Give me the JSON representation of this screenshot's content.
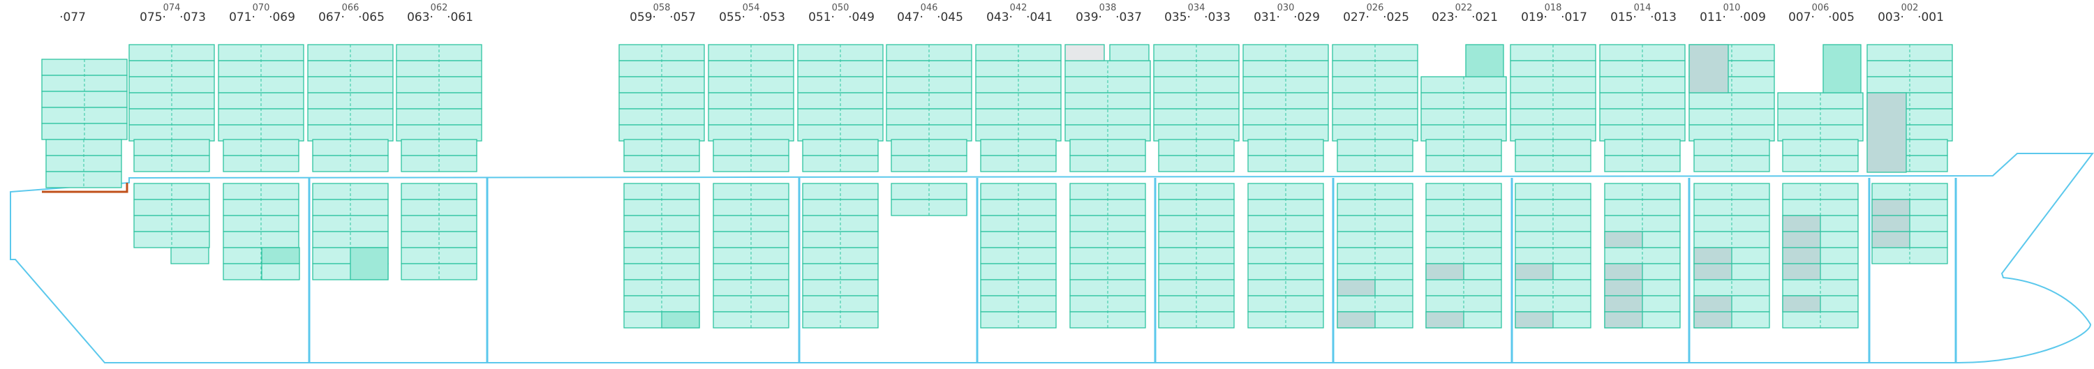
{
  "bays": [
    {
      "id": "077",
      "left": "",
      "right": "077",
      "top": ""
    },
    {
      "id": "074",
      "left": "075",
      "right": "073",
      "top": "074"
    },
    {
      "id": "070",
      "left": "071",
      "right": "069",
      "top": "070"
    },
    {
      "id": "066",
      "left": "067",
      "right": "065",
      "top": "066"
    },
    {
      "id": "062",
      "left": "063",
      "right": "061",
      "top": "062"
    },
    {
      "id": "058",
      "left": "059",
      "right": "057",
      "top": "058"
    },
    {
      "id": "054",
      "left": "055",
      "right": "053",
      "top": "054"
    },
    {
      "id": "050",
      "left": "051",
      "right": "049",
      "top": "050"
    },
    {
      "id": "046",
      "left": "047",
      "right": "045",
      "top": "046"
    },
    {
      "id": "042",
      "left": "043",
      "right": "041",
      "top": "042"
    },
    {
      "id": "038",
      "left": "039",
      "right": "037",
      "top": "038"
    },
    {
      "id": "034",
      "left": "035",
      "right": "033",
      "top": "034"
    },
    {
      "id": "030",
      "left": "031",
      "right": "029",
      "top": "030"
    },
    {
      "id": "026",
      "left": "027",
      "right": "025",
      "top": "026"
    },
    {
      "id": "022",
      "left": "023",
      "right": "021",
      "top": "022"
    },
    {
      "id": "018",
      "left": "019",
      "right": "017",
      "top": "018"
    },
    {
      "id": "014",
      "left": "015",
      "right": "013",
      "top": "014"
    },
    {
      "id": "010",
      "left": "011",
      "right": "009",
      "top": "010"
    },
    {
      "id": "006",
      "left": "007",
      "right": "005",
      "top": "006"
    },
    {
      "id": "002",
      "left": "003",
      "right": "001",
      "top": "002"
    }
  ],
  "colors": {
    "slot_fill": "#c4f3ea",
    "slot_stroke": "#2ec4a0",
    "slot_highlight": "#9ee9d8",
    "slot_grey": "#bcd9d8",
    "slot_empty": "#e6e8ea",
    "hull": "#5bc8ec",
    "bulkhead": "#5bc8ec",
    "accent": "#c0501a"
  }
}
